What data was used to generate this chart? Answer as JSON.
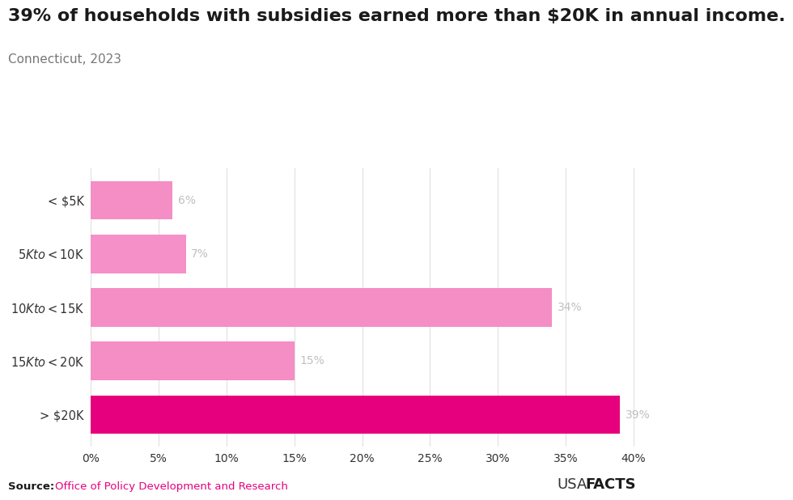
{
  "title": "39% of households with subsidies earned more than $20K in annual income.",
  "subtitle": "Connecticut, 2023",
  "categories": [
    "< $5K",
    "$5K to <$10K",
    "$10K to <$15K",
    "$15K to <$20K",
    "> $20K"
  ],
  "values": [
    6,
    7,
    34,
    15,
    39
  ],
  "bar_colors": [
    "#f48ec4",
    "#f590c8",
    "#f48ec4",
    "#f48ec4",
    "#e6007e"
  ],
  "value_labels": [
    "6%",
    "7%",
    "34%",
    "15%",
    "39%"
  ],
  "xlim": [
    0,
    41
  ],
  "xtick_values": [
    0,
    5,
    10,
    15,
    20,
    25,
    30,
    35,
    40
  ],
  "xtick_labels": [
    "0%",
    "5%",
    "10%",
    "15%",
    "20%",
    "25%",
    "30%",
    "35%",
    "40%"
  ],
  "source_label": "Source:",
  "source_text": "Office of Policy Development and Research",
  "usa_text_thin": "USA",
  "usa_text_bold": "FACTS",
  "title_fontsize": 16,
  "subtitle_fontsize": 11,
  "tick_fontsize": 10,
  "bar_label_fontsize": 10,
  "ylabel_fontsize": 10.5,
  "background_color": "#ffffff",
  "grid_color": "#e0e0e0",
  "bar_height": 0.72
}
